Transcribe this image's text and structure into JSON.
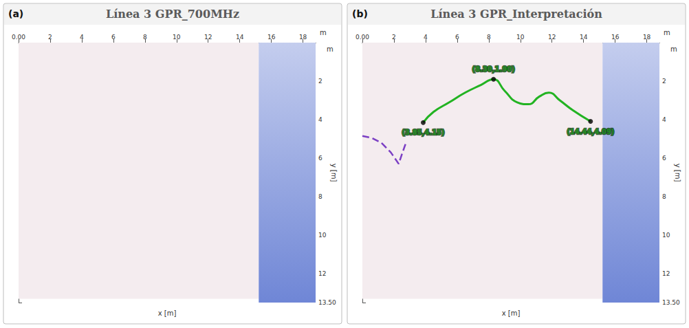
{
  "chart_data": [
    {
      "type": "line",
      "panel": "(a)",
      "title": "Línea 3 GPR_700MHz",
      "xlabel": "x [m]",
      "ylabel": "y [m]",
      "x_unit": "m",
      "y_unit": "m",
      "xlim": [
        0,
        18.8
      ],
      "xticks": [
        {
          "value": 0,
          "label": "0.00"
        },
        2,
        4,
        6,
        8,
        10,
        12,
        14,
        16,
        18
      ],
      "ylim": [
        0,
        13.5
      ],
      "yticks": [
        2,
        4,
        6,
        8,
        10,
        12,
        {
          "value": 13.5,
          "label": "13.50"
        }
      ],
      "radargram": {
        "x": [
          0,
          15.2
        ],
        "y": [
          0,
          13.3
        ]
      },
      "grid": false,
      "series": []
    },
    {
      "type": "line",
      "panel": "(b)",
      "title": "Línea 3 GPR_Interpretación",
      "xlabel": "x [m]",
      "ylabel": "y [m]",
      "x_unit": "m",
      "y_unit": "m",
      "xlim": [
        0,
        18.8
      ],
      "xticks": [
        {
          "value": 0,
          "label": "0.00"
        },
        2,
        4,
        6,
        8,
        10,
        12,
        14,
        16,
        18
      ],
      "ylim": [
        0,
        13.5
      ],
      "yticks": [
        2,
        4,
        6,
        8,
        10,
        12,
        {
          "value": 13.5,
          "label": "13.50"
        }
      ],
      "radargram": {
        "x": [
          0,
          15.2
        ],
        "y": [
          0,
          13.3
        ]
      },
      "grid": false,
      "series": [
        {
          "type": "line",
          "color": "#22b322",
          "line_style": "solid",
          "x": [
            3.85,
            4.5,
            5.5,
            6.5,
            7.5,
            8.3,
            9.0,
            9.8,
            10.5,
            11.2,
            11.8,
            12.5,
            13.3,
            14.44
          ],
          "values": [
            4.15,
            3.6,
            3.1,
            2.6,
            2.2,
            1.9,
            2.5,
            3.1,
            3.2,
            2.8,
            2.6,
            3.0,
            3.5,
            4.09
          ]
        },
        {
          "type": "line",
          "color": "#7b3fc4",
          "line_style": "dashed",
          "x": [
            0,
            0.6,
            1.2,
            1.8,
            2.3,
            2.5,
            2.8
          ],
          "values": [
            4.85,
            4.95,
            5.2,
            5.7,
            6.3,
            5.8,
            5.1
          ]
        },
        {
          "type": "scatter",
          "color": "#000000",
          "marker": "circle",
          "data_labels": true,
          "x": [
            3.85,
            8.3,
            14.44
          ],
          "values": [
            4.15,
            1.9,
            4.09
          ],
          "value_labels": [
            "(3.85,4.15)",
            "(8.30,1.90)",
            "(14.44,4.09)"
          ]
        }
      ]
    }
  ]
}
